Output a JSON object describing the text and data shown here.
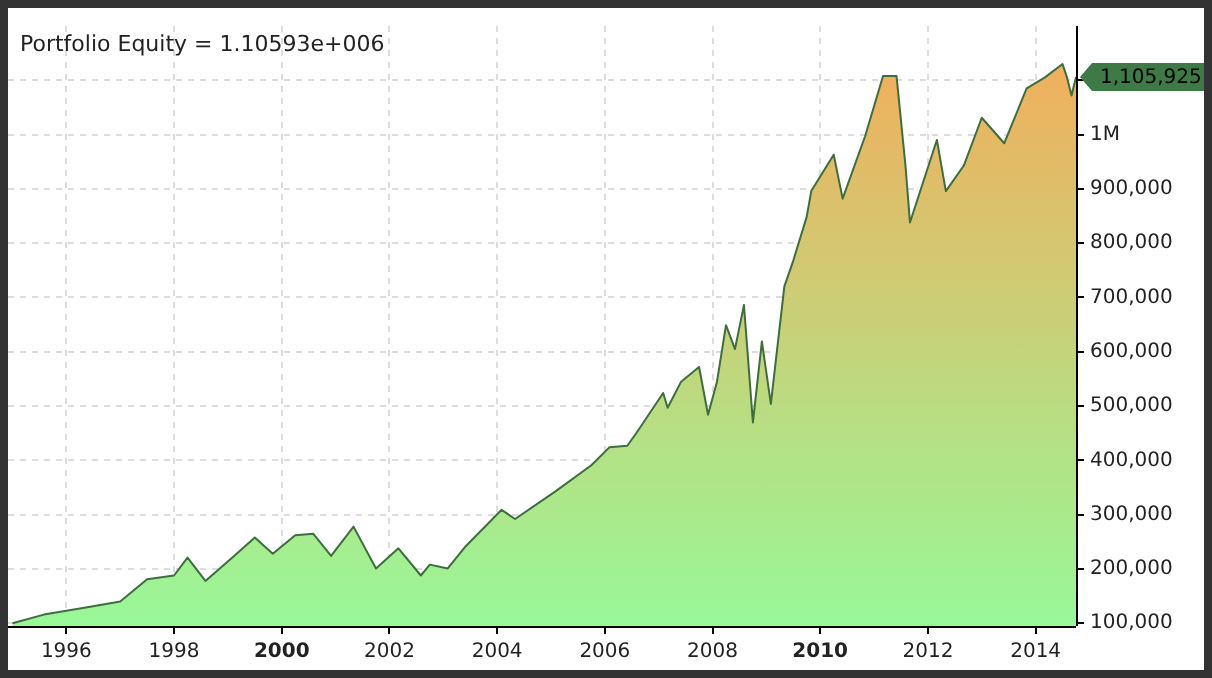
{
  "chart_data": {
    "type": "area",
    "title": "Portfolio Equity = 1.10593e+006",
    "x": [
      "1995-01",
      "1995-08",
      "1996-06",
      "1997-01",
      "1997-07",
      "1998-01",
      "1998-04",
      "1998-08",
      "1999-02",
      "1999-07",
      "1999-11",
      "2000-04",
      "2000-08",
      "2000-12",
      "2001-05",
      "2001-10",
      "2002-03",
      "2002-08",
      "2002-10",
      "2003-02",
      "2003-06",
      "2004-02",
      "2004-05",
      "2005-02",
      "2005-10",
      "2006-02",
      "2006-06",
      "2006-08",
      "2007-02",
      "2007-03",
      "2007-06",
      "2007-10",
      "2007-12",
      "2008-02",
      "2008-04",
      "2008-06",
      "2008-08",
      "2008-10",
      "2008-12",
      "2009-02",
      "2009-05",
      "2009-07",
      "2009-10",
      "2009-11",
      "2010-04",
      "2010-06",
      "2010-11",
      "2011-03",
      "2011-06",
      "2011-08",
      "2011-09",
      "2012-03",
      "2012-05",
      "2012-09",
      "2013-01",
      "2013-06",
      "2013-11",
      "2014-03",
      "2014-07",
      "2014-08",
      "2014-09",
      "2014-10"
    ],
    "series": [
      {
        "color": "#3d6e3d",
        "values": [
          100000,
          116000,
          130000,
          140000,
          181000,
          188000,
          221000,
          178000,
          221000,
          258000,
          228000,
          262000,
          265000,
          224000,
          278000,
          201000,
          238000,
          188000,
          208000,
          201000,
          242000,
          309000,
          292000,
          343000,
          391000,
          424000,
          427000,
          450000,
          524000,
          497000,
          545000,
          572000,
          484000,
          545000,
          649000,
          605000,
          686000,
          470000,
          619000,
          504000,
          720000,
          768000,
          849000,
          896000,
          963000,
          882000,
          997000,
          1108000,
          1108000,
          943000,
          838000,
          990000,
          896000,
          943000,
          1031000,
          984000,
          1085000,
          1105000,
          1130000,
          1105000,
          1072000,
          1105925
        ]
      }
    ],
    "xlim": [
      "1994-12",
      "2014-10"
    ],
    "xticks": [
      "1996",
      "1998",
      "2000",
      "2002",
      "2004",
      "2006",
      "2008",
      "2010",
      "2012",
      "2014"
    ],
    "ylim": [
      95000,
      1200000
    ],
    "yticks": [
      {
        "value": 100000,
        "label": "100,000"
      },
      {
        "value": 200000,
        "label": "200,000"
      },
      {
        "value": 300000,
        "label": "300,000"
      },
      {
        "value": 400000,
        "label": "400,000"
      },
      {
        "value": 500000,
        "label": "500,000"
      },
      {
        "value": 600000,
        "label": "600,000"
      },
      {
        "value": 700000,
        "label": "700,000"
      },
      {
        "value": 800000,
        "label": "800,000"
      },
      {
        "value": 900000,
        "label": "900,000"
      },
      {
        "value": 1000000,
        "label": "1M"
      },
      {
        "value": 1100000,
        "label": null
      }
    ],
    "annotations": [
      {
        "text": "1,105,925",
        "x": "2014-10",
        "y": 1105925
      }
    ],
    "grid": true,
    "legend": false
  }
}
